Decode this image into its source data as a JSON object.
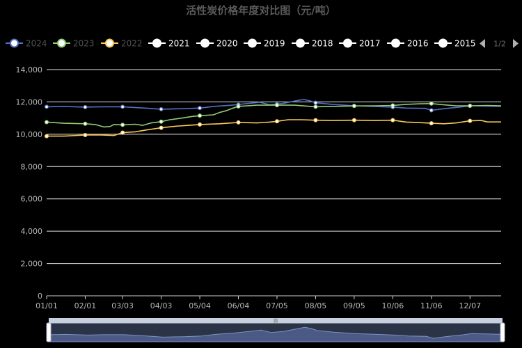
{
  "chart_data": {
    "type": "line",
    "title": "活性炭价格年度对比图（元/吨）",
    "xlabel": "",
    "ylabel": "",
    "ylim": [
      0,
      14000
    ],
    "yticks": [
      0,
      2000,
      4000,
      6000,
      8000,
      10000,
      12000,
      14000
    ],
    "ytick_labels": [
      "0",
      "2,000",
      "4,000",
      "6,000",
      "8,000",
      "10,000",
      "12,000",
      "14,000"
    ],
    "xticks": [
      1,
      32,
      62,
      93,
      124,
      155,
      186,
      217,
      248,
      279,
      310,
      341
    ],
    "xtick_labels": [
      "01/01",
      "02/01",
      "03/03",
      "04/03",
      "05/04",
      "06/04",
      "07/05",
      "08/05",
      "09/05",
      "10/06",
      "11/06",
      "12/07"
    ],
    "xlim": [
      1,
      366
    ],
    "grid": true,
    "legend_position": "top",
    "legend_page": "1/2",
    "legend": [
      {
        "name": "2024",
        "color": "#5470c6",
        "active": false
      },
      {
        "name": "2023",
        "color": "#91cc75",
        "active": false
      },
      {
        "name": "2022",
        "color": "#fac858",
        "active": false
      },
      {
        "name": "2021",
        "color": "#ffffff",
        "active": true
      },
      {
        "name": "2020",
        "color": "#ffffff",
        "active": true
      },
      {
        "name": "2019",
        "color": "#ffffff",
        "active": true
      },
      {
        "name": "2018",
        "color": "#ffffff",
        "active": true
      },
      {
        "name": "2017",
        "color": "#ffffff",
        "active": true
      },
      {
        "name": "2016",
        "color": "#ffffff",
        "active": true
      },
      {
        "name": "2015",
        "color": "#ffffff",
        "active": true
      }
    ],
    "series": [
      {
        "name": "2024",
        "color": "#5470c6",
        "points": [
          [
            1,
            11700
          ],
          [
            15,
            11720
          ],
          [
            32,
            11680
          ],
          [
            45,
            11700
          ],
          [
            62,
            11700
          ],
          [
            80,
            11620
          ],
          [
            93,
            11550
          ],
          [
            110,
            11580
          ],
          [
            124,
            11620
          ],
          [
            135,
            11720
          ],
          [
            150,
            11800
          ],
          [
            160,
            11880
          ],
          [
            172,
            11980
          ],
          [
            180,
            11830
          ],
          [
            190,
            11900
          ],
          [
            200,
            12050
          ],
          [
            207,
            12150
          ],
          [
            212,
            12080
          ],
          [
            217,
            11950
          ],
          [
            230,
            11850
          ],
          [
            248,
            11760
          ],
          [
            265,
            11720
          ],
          [
            279,
            11680
          ],
          [
            290,
            11620
          ],
          [
            305,
            11600
          ],
          [
            310,
            11480
          ],
          [
            320,
            11580
          ],
          [
            335,
            11700
          ],
          [
            341,
            11760
          ],
          [
            355,
            11740
          ],
          [
            366,
            11720
          ]
        ],
        "markers": [
          [
            1,
            11700
          ],
          [
            32,
            11680
          ],
          [
            62,
            11700
          ],
          [
            93,
            11550
          ],
          [
            124,
            11620
          ],
          [
            155,
            11830
          ],
          [
            186,
            11860
          ],
          [
            217,
            11950
          ],
          [
            248,
            11760
          ],
          [
            279,
            11680
          ],
          [
            310,
            11480
          ],
          [
            341,
            11760
          ]
        ]
      },
      {
        "name": "2023",
        "color": "#91cc75",
        "points": [
          [
            1,
            10750
          ],
          [
            15,
            10680
          ],
          [
            32,
            10650
          ],
          [
            40,
            10600
          ],
          [
            47,
            10450
          ],
          [
            52,
            10480
          ],
          [
            55,
            10600
          ],
          [
            62,
            10580
          ],
          [
            72,
            10620
          ],
          [
            78,
            10550
          ],
          [
            85,
            10700
          ],
          [
            93,
            10780
          ],
          [
            100,
            10900
          ],
          [
            110,
            11000
          ],
          [
            118,
            11100
          ],
          [
            124,
            11150
          ],
          [
            135,
            11200
          ],
          [
            140,
            11350
          ],
          [
            145,
            11450
          ],
          [
            150,
            11600
          ],
          [
            155,
            11720
          ],
          [
            170,
            11800
          ],
          [
            186,
            11800
          ],
          [
            200,
            11800
          ],
          [
            217,
            11700
          ],
          [
            230,
            11720
          ],
          [
            248,
            11750
          ],
          [
            265,
            11760
          ],
          [
            279,
            11780
          ],
          [
            290,
            11850
          ],
          [
            300,
            11880
          ],
          [
            310,
            11900
          ],
          [
            320,
            11820
          ],
          [
            330,
            11760
          ],
          [
            341,
            11760
          ],
          [
            355,
            11780
          ],
          [
            366,
            11760
          ]
        ],
        "markers": [
          [
            1,
            10750
          ],
          [
            32,
            10650
          ],
          [
            62,
            10580
          ],
          [
            93,
            10780
          ],
          [
            124,
            11150
          ],
          [
            155,
            11720
          ],
          [
            186,
            11800
          ],
          [
            217,
            11700
          ],
          [
            248,
            11750
          ],
          [
            279,
            11780
          ],
          [
            310,
            11900
          ],
          [
            341,
            11760
          ]
        ]
      },
      {
        "name": "2022",
        "color": "#fac858",
        "points": [
          [
            1,
            9880
          ],
          [
            15,
            9880
          ],
          [
            32,
            9950
          ],
          [
            45,
            9950
          ],
          [
            55,
            9920
          ],
          [
            62,
            10100
          ],
          [
            72,
            10150
          ],
          [
            80,
            10250
          ],
          [
            93,
            10400
          ],
          [
            105,
            10500
          ],
          [
            115,
            10550
          ],
          [
            124,
            10600
          ],
          [
            140,
            10650
          ],
          [
            155,
            10730
          ],
          [
            170,
            10700
          ],
          [
            180,
            10750
          ],
          [
            186,
            10800
          ],
          [
            195,
            10900
          ],
          [
            205,
            10900
          ],
          [
            217,
            10870
          ],
          [
            230,
            10850
          ],
          [
            248,
            10870
          ],
          [
            265,
            10850
          ],
          [
            279,
            10870
          ],
          [
            290,
            10750
          ],
          [
            300,
            10720
          ],
          [
            310,
            10680
          ],
          [
            320,
            10650
          ],
          [
            330,
            10700
          ],
          [
            341,
            10830
          ],
          [
            350,
            10850
          ],
          [
            355,
            10760
          ],
          [
            366,
            10760
          ]
        ],
        "markers": [
          [
            1,
            9880
          ],
          [
            32,
            9950
          ],
          [
            62,
            10100
          ],
          [
            93,
            10400
          ],
          [
            124,
            10600
          ],
          [
            155,
            10730
          ],
          [
            186,
            10800
          ],
          [
            217,
            10870
          ],
          [
            248,
            10870
          ],
          [
            279,
            10870
          ],
          [
            310,
            10680
          ],
          [
            341,
            10830
          ]
        ]
      }
    ],
    "data_zoom": {
      "start_percent": 0,
      "end_percent": 100,
      "handle_label": "|||",
      "preview_series": "2024"
    }
  }
}
